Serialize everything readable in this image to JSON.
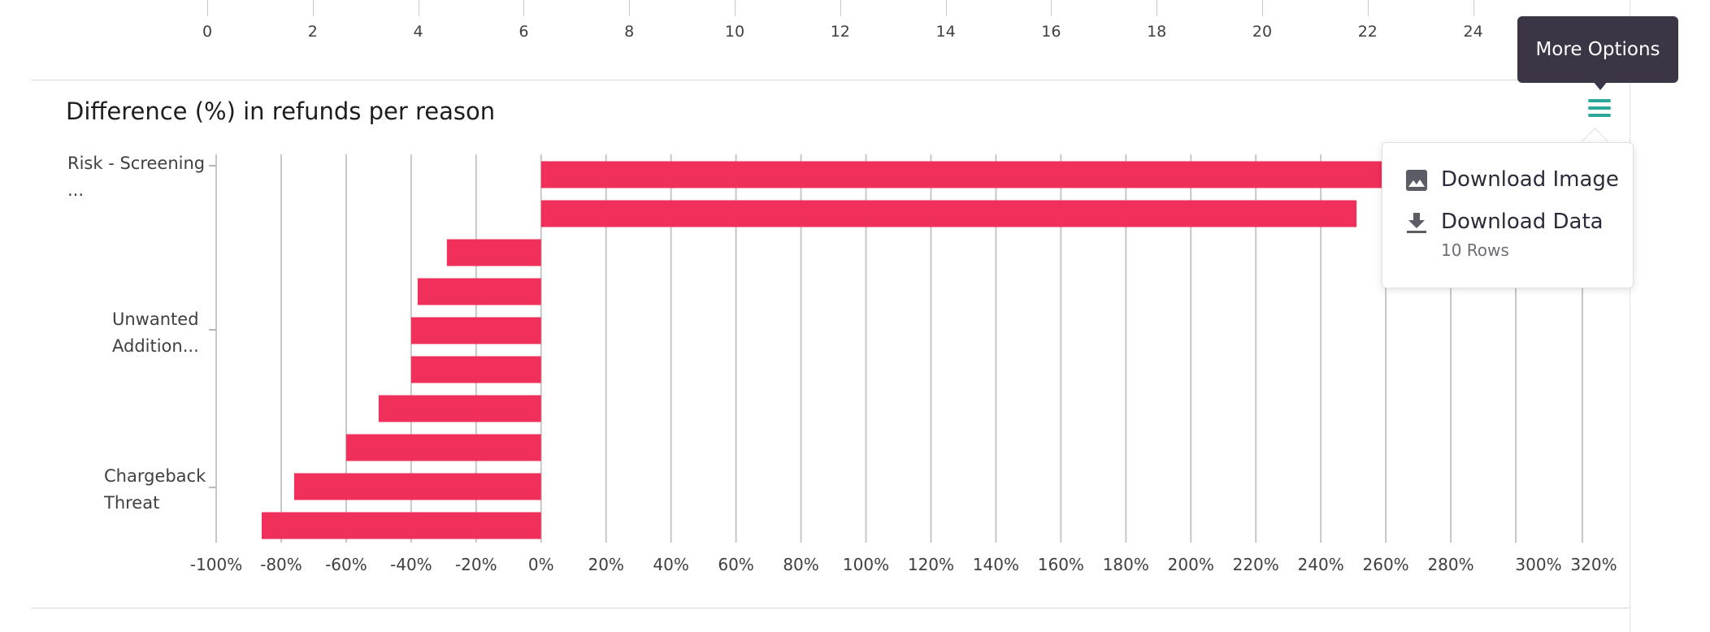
{
  "top_axis": {
    "ticks": [
      "0",
      "2",
      "4",
      "6",
      "8",
      "10",
      "12",
      "14",
      "16",
      "18",
      "20",
      "22",
      "24"
    ]
  },
  "panel": {
    "title": "Difference (%) in refunds per reason"
  },
  "menu": {
    "tooltip": "More Options",
    "icon": "hamburger-menu-icon",
    "items": [
      {
        "icon": "image-icon",
        "label": "Download Image"
      },
      {
        "icon": "download-icon",
        "label": "Download Data",
        "sub": "10 Rows"
      }
    ]
  },
  "colors": {
    "bar": "#f0305a",
    "menu_icon": "#2aa89a",
    "tooltip_bg": "#3b3546"
  },
  "chart_data": {
    "type": "bar",
    "orientation": "horizontal",
    "title": "Difference (%) in refunds per reason",
    "y_tick_labels": [
      "Risk - Screening ...",
      "Unwanted Addition...",
      "Chargeback Threat"
    ],
    "x_tick_labels": [
      "-100%",
      "-80%",
      "-60%",
      "-40%",
      "-20%",
      "0%",
      "20%",
      "40%",
      "60%",
      "80%",
      "100%",
      "120%",
      "140%",
      "160%",
      "180%",
      "200%",
      "220%",
      "240%",
      "260%",
      "280%",
      "300%",
      "320%"
    ],
    "xlim": [
      -100,
      320
    ],
    "values": [
      260,
      251,
      -29,
      -38,
      -40,
      -40,
      -50,
      -60,
      -76,
      -86
    ],
    "grid": true
  }
}
